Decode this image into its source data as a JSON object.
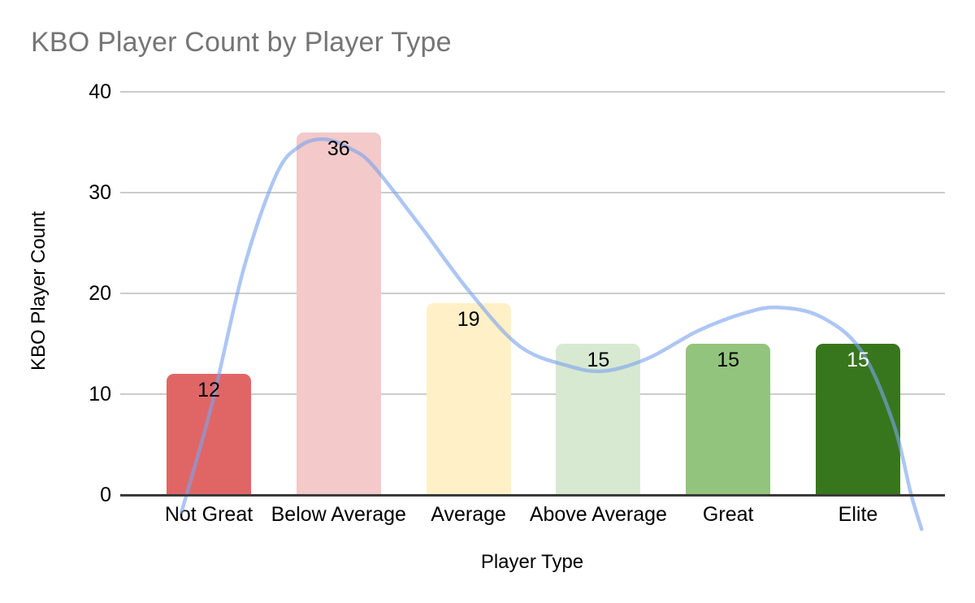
{
  "page": {
    "background": "#ffffff"
  },
  "chart_data": {
    "type": "bar",
    "title": "KBO Player Count by Player Type",
    "title_color": "#757575",
    "xlabel": "Player Type",
    "ylabel": "KBO Player Count",
    "categories": [
      "Not Great",
      "Below Average",
      "Average",
      "Above Average",
      "Great",
      "Elite"
    ],
    "values": [
      12,
      36,
      19,
      15,
      15,
      15
    ],
    "bar_colors": [
      "#E06666",
      "#F3C9C9",
      "#FFF0C7",
      "#D8E9D2",
      "#93C47D",
      "#38761D"
    ],
    "data_label_colors": [
      "#000000",
      "#000000",
      "#000000",
      "#000000",
      "#000000",
      "#FFFFFF"
    ],
    "ylim": [
      0,
      40
    ],
    "yticks": [
      0,
      10,
      20,
      30,
      40
    ],
    "grid": true,
    "legend_position": "none",
    "axis_text_color": "#000000",
    "gridline_color": "#cccccc",
    "baseline_color": "#3a3a3a",
    "trendline": {
      "type": "smooth-polynomial",
      "color": "#7BA3EE",
      "opacity": 0.62,
      "points_unit_value": [
        [
          -0.21,
          -1.7
        ],
        [
          0.02,
          8.8
        ],
        [
          0.27,
          22.5
        ],
        [
          0.52,
          31.8
        ],
        [
          0.7,
          34.6
        ],
        [
          0.89,
          35.3
        ],
        [
          1.1,
          34.3
        ],
        [
          1.27,
          32.6
        ],
        [
          1.64,
          26.5
        ],
        [
          2.0,
          20.3
        ],
        [
          2.39,
          14.8
        ],
        [
          2.77,
          12.8
        ],
        [
          3.05,
          12.3
        ],
        [
          3.39,
          13.6
        ],
        [
          3.77,
          16.3
        ],
        [
          4.14,
          18.1
        ],
        [
          4.39,
          18.6
        ],
        [
          4.71,
          17.7
        ],
        [
          5.02,
          14.4
        ],
        [
          5.27,
          7.2
        ],
        [
          5.41,
          0.0
        ],
        [
          5.49,
          -3.4
        ]
      ]
    }
  }
}
